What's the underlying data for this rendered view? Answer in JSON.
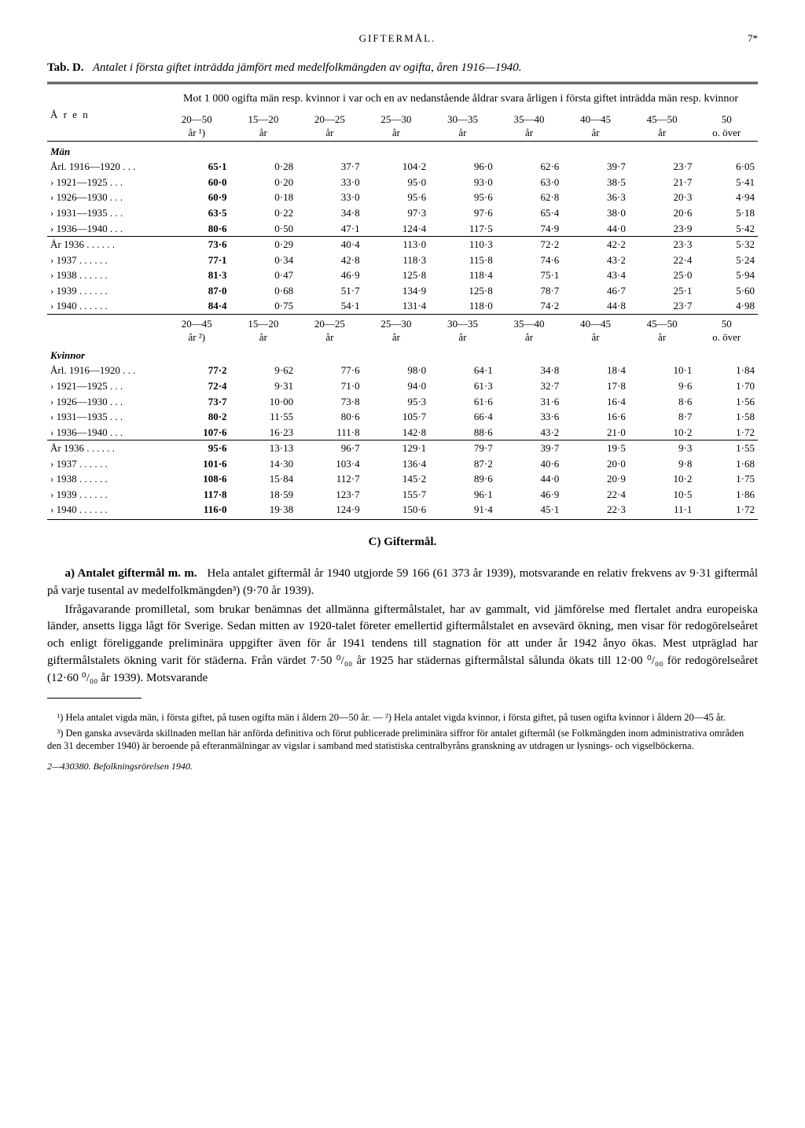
{
  "header": {
    "title": "GIFTERMÅL.",
    "page": "7*"
  },
  "tab": {
    "label": "Tab. D.",
    "title_it": "Antalet i första giftet inträdda jämfört med medelfolkmängden av ogifta, åren 1916—1940."
  },
  "caption": "Mot 1 000 ogifta män resp. kvinnor i var och en av nedanstående åldrar svara årligen i första giftet inträdda män resp. kvinnor",
  "stub": "Å r e n",
  "men_head": "Män",
  "women_head": "Kvinnor",
  "cols_men": [
    "20—50 år ¹)",
    "15—20 år",
    "20—25 år",
    "25—30 år",
    "30—35 år",
    "35—40 år",
    "40—45 år",
    "45—50 år",
    "50 o. över"
  ],
  "cols_women": [
    "20—45 år ²)",
    "15—20 år",
    "20—25 år",
    "25—30 år",
    "30—35 år",
    "35—40 år",
    "40—45 år",
    "45—50 år",
    "50 o. över"
  ],
  "men_rows": [
    {
      "l": "Årl. 1916—1920 . . .",
      "v": [
        "65·1",
        "0·28",
        "37·7",
        "104·2",
        "96·0",
        "62·6",
        "39·7",
        "23·7",
        "6·05"
      ]
    },
    {
      "l": "› 1921—1925 . . .",
      "v": [
        "60·0",
        "0·20",
        "33·0",
        "95·0",
        "93·0",
        "63·0",
        "38·5",
        "21·7",
        "5·41"
      ]
    },
    {
      "l": "› 1926—1930 . . .",
      "v": [
        "60·9",
        "0·18",
        "33·0",
        "95·6",
        "95·6",
        "62·8",
        "36·3",
        "20·3",
        "4·94"
      ]
    },
    {
      "l": "› 1931—1935 . . .",
      "v": [
        "63·5",
        "0·22",
        "34·8",
        "97·3",
        "97·6",
        "65·4",
        "38·0",
        "20·6",
        "5·18"
      ]
    },
    {
      "l": "› 1936—1940 . . .",
      "v": [
        "80·6",
        "0·50",
        "47·1",
        "124·4",
        "117·5",
        "74·9",
        "44·0",
        "23·9",
        "5·42"
      ]
    }
  ],
  "men_rows2": [
    {
      "l": "År 1936 . . . . . .",
      "v": [
        "73·6",
        "0·29",
        "40·4",
        "113·0",
        "110·3",
        "72·2",
        "42·2",
        "23·3",
        "5·32"
      ]
    },
    {
      "l": "› 1937 . . . . . .",
      "v": [
        "77·1",
        "0·34",
        "42·8",
        "118·3",
        "115·8",
        "74·6",
        "43·2",
        "22·4",
        "5·24"
      ]
    },
    {
      "l": "› 1938 . . . . . .",
      "v": [
        "81·3",
        "0·47",
        "46·9",
        "125·8",
        "118·4",
        "75·1",
        "43·4",
        "25·0",
        "5·94"
      ]
    },
    {
      "l": "› 1939 . . . . . .",
      "v": [
        "87·0",
        "0·68",
        "51·7",
        "134·9",
        "125·8",
        "78·7",
        "46·7",
        "25·1",
        "5·60"
      ]
    },
    {
      "l": "› 1940 . . . . . .",
      "v": [
        "84·4",
        "0·75",
        "54·1",
        "131·4",
        "118·0",
        "74·2",
        "44·8",
        "23·7",
        "4·98"
      ]
    }
  ],
  "women_rows": [
    {
      "l": "Årl. 1916—1920 . . .",
      "v": [
        "77·2",
        "9·62",
        "77·6",
        "98·0",
        "64·1",
        "34·8",
        "18·4",
        "10·1",
        "1·84"
      ]
    },
    {
      "l": "› 1921—1925 . . .",
      "v": [
        "72·4",
        "9·31",
        "71·0",
        "94·0",
        "61·3",
        "32·7",
        "17·8",
        "9·6",
        "1·70"
      ]
    },
    {
      "l": "› 1926—1930 . . .",
      "v": [
        "73·7",
        "10·00",
        "73·8",
        "95·3",
        "61·6",
        "31·6",
        "16·4",
        "8·6",
        "1·56"
      ]
    },
    {
      "l": "› 1931—1935 . . .",
      "v": [
        "80·2",
        "11·55",
        "80·6",
        "105·7",
        "66·4",
        "33·6",
        "16·6",
        "8·7",
        "1·58"
      ]
    },
    {
      "l": "› 1936—1940 . . .",
      "v": [
        "107·6",
        "16·23",
        "111·8",
        "142·8",
        "88·6",
        "43·2",
        "21·0",
        "10·2",
        "1·72"
      ]
    }
  ],
  "women_rows2": [
    {
      "l": "År 1936 . . . . . .",
      "v": [
        "95·6",
        "13·13",
        "96·7",
        "129·1",
        "79·7",
        "39·7",
        "19·5",
        "9·3",
        "1·55"
      ]
    },
    {
      "l": "› 1937 . . . . . .",
      "v": [
        "101·6",
        "14·30",
        "103·4",
        "136·4",
        "87·2",
        "40·6",
        "20·0",
        "9·8",
        "1·68"
      ]
    },
    {
      "l": "› 1938 . . . . . .",
      "v": [
        "108·6",
        "15·84",
        "112·7",
        "145·2",
        "89·6",
        "44·0",
        "20·9",
        "10·2",
        "1·75"
      ]
    },
    {
      "l": "› 1939 . . . . . .",
      "v": [
        "117·8",
        "18·59",
        "123·7",
        "155·7",
        "96·1",
        "46·9",
        "22·4",
        "10·5",
        "1·86"
      ]
    },
    {
      "l": "› 1940 . . . . . .",
      "v": [
        "116·0",
        "19·38",
        "124·9",
        "150·6",
        "91·4",
        "45·1",
        "22·3",
        "11·1",
        "1·72"
      ]
    }
  ],
  "section_c": "C)  Giftermål.",
  "para1": "a) Antalet giftermål m. m.   Hela antalet giftermål år 1940 utgjorde 59 166 (61 373 år 1939), motsvarande en relativ frekvens av 9·31 giftermål på varje tusental av medelfolkmängden³) (9·70 år 1939).",
  "para2": "Ifrågavarande promilletal, som brukar benämnas det allmänna giftermålstalet, har av gammalt, vid jämförelse med flertalet andra europeiska länder, ansetts ligga lågt för Sverige. Sedan mitten av 1920-talet företer emellertid giftermålstalet en avsevärd ökning, men visar för redogörelseåret och enligt föreliggande preliminära uppgifter även för år 1941 tendens till stagnation för att under år 1942 ånyo ökas. Mest utpräglad har giftermålstalets ökning varit för städerna. Från värdet 7·50 ⁰/₀₀ år 1925 har städernas giftermålstal sålunda ökats till 12·00 ⁰/₀₀ för redogörelseåret (12·60 ⁰/₀₀ år 1939). Motsvarande",
  "fn1": "¹) Hela antalet vigda män, i första giftet, på tusen ogifta män i åldern 20—50 år. — ²) Hela antalet vigda kvinnor, i första giftet, på tusen ogifta kvinnor i åldern 20—45 år.",
  "fn3": "³) Den ganska avsevärda skillnaden mellan här anförda definitiva och förut publicerade preliminära siffror för antalet giftermål (se Folkmängden inom administrativa områden den 31 december 1940) är beroende på efteranmälningar av vigslar i samband med statistiska centralbyråns granskning av utdragen ur lysnings- och vigselböckerna.",
  "bottom": "2—430380.  Befolkningsrörelsen 1940."
}
